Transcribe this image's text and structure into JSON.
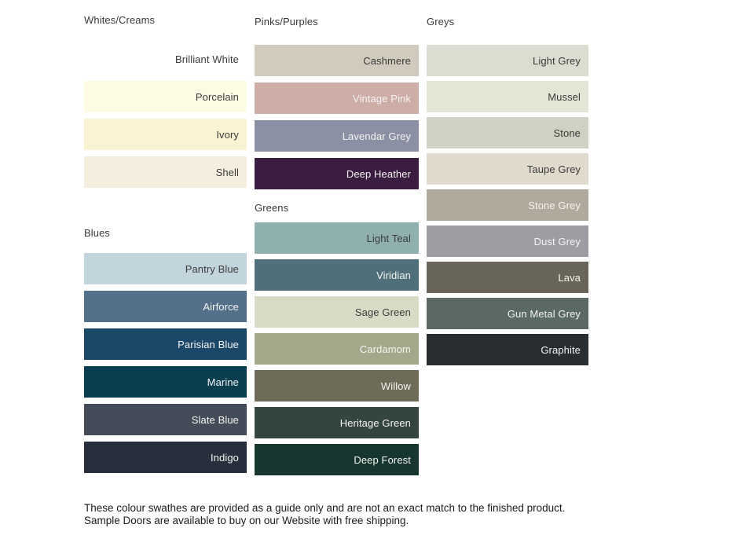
{
  "footer": {
    "text": "These colour swathes are provided as a guide only and are not an exact match to the finished product.  Sample Doors are available to buy on our Website with free shipping."
  },
  "text_colors": {
    "dark": "#3b3b3b",
    "light": "#f5f4f1"
  },
  "palette": {
    "columns": [
      {
        "sections": [
          {
            "title": "Whites/Creams",
            "swatches": [
              {
                "label": "Brilliant White",
                "color": "#ffffff",
                "label_tone": "dark"
              },
              {
                "label": "Porcelain",
                "color": "#fefbe4",
                "label_tone": "dark"
              },
              {
                "label": "Ivory",
                "color": "#faf3d2",
                "label_tone": "dark"
              },
              {
                "label": "Shell",
                "color": "#f5eedf",
                "label_tone": "dark"
              }
            ]
          },
          {
            "title": "Blues",
            "swatches": [
              {
                "label": "Pantry Blue",
                "color": "#c2d5dc",
                "label_tone": "dark"
              },
              {
                "label": "Airforce",
                "color": "#52708a",
                "label_tone": "light"
              },
              {
                "label": "Parisian Blue",
                "color": "#1b4769",
                "label_tone": "light"
              },
              {
                "label": "Marine",
                "color": "#093e51",
                "label_tone": "light"
              },
              {
                "label": "Slate Blue",
                "color": "#454c59",
                "label_tone": "light"
              },
              {
                "label": "Indigo",
                "color": "#272f3c",
                "label_tone": "light"
              }
            ]
          }
        ]
      },
      {
        "sections": [
          {
            "title": "Pinks/Purples",
            "swatches": [
              {
                "label": "Cashmere",
                "color": "#d1cbbd",
                "label_tone": "dark"
              },
              {
                "label": "Vintage Pink",
                "color": "#cfada7",
                "label_tone": "light"
              },
              {
                "label": "Lavendar Grey",
                "color": "#8c90a4",
                "label_tone": "light"
              },
              {
                "label": "Deep Heather",
                "color": "#3b1d41",
                "label_tone": "light"
              }
            ]
          },
          {
            "title": "Greens",
            "swatches": [
              {
                "label": "Light Teal",
                "color": "#8fb0ae",
                "label_tone": "dark"
              },
              {
                "label": "Viridian",
                "color": "#4f707a",
                "label_tone": "light"
              },
              {
                "label": "Sage Green",
                "color": "#d7dcc7",
                "label_tone": "dark"
              },
              {
                "label": "Cardamom",
                "color": "#a4a78a",
                "label_tone": "light"
              },
              {
                "label": "Willow",
                "color": "#6e6b58",
                "label_tone": "light"
              },
              {
                "label": "Heritage Green",
                "color": "#344540",
                "label_tone": "light"
              },
              {
                "label": "Deep Forest",
                "color": "#173630",
                "label_tone": "light"
              }
            ]
          }
        ]
      },
      {
        "sections": [
          {
            "title": "Greys",
            "swatches": [
              {
                "label": "Light Grey",
                "color": "#dcddd0",
                "label_tone": "dark"
              },
              {
                "label": "Mussel",
                "color": "#e3e5d5",
                "label_tone": "dark"
              },
              {
                "label": "Stone",
                "color": "#cfd2c2",
                "label_tone": "dark"
              },
              {
                "label": "Taupe Grey",
                "color": "#e0dacc",
                "label_tone": "dark"
              },
              {
                "label": "Stone Grey",
                "color": "#b1a99c",
                "label_tone": "light"
              },
              {
                "label": "Dust Grey",
                "color": "#9c9ea3",
                "label_tone": "light"
              },
              {
                "label": "Lava",
                "color": "#696559",
                "label_tone": "light"
              },
              {
                "label": "Gun Metal Grey",
                "color": "#5a6965",
                "label_tone": "light"
              },
              {
                "label": "Graphite",
                "color": "#282d32",
                "label_tone": "light"
              }
            ]
          }
        ]
      }
    ]
  }
}
